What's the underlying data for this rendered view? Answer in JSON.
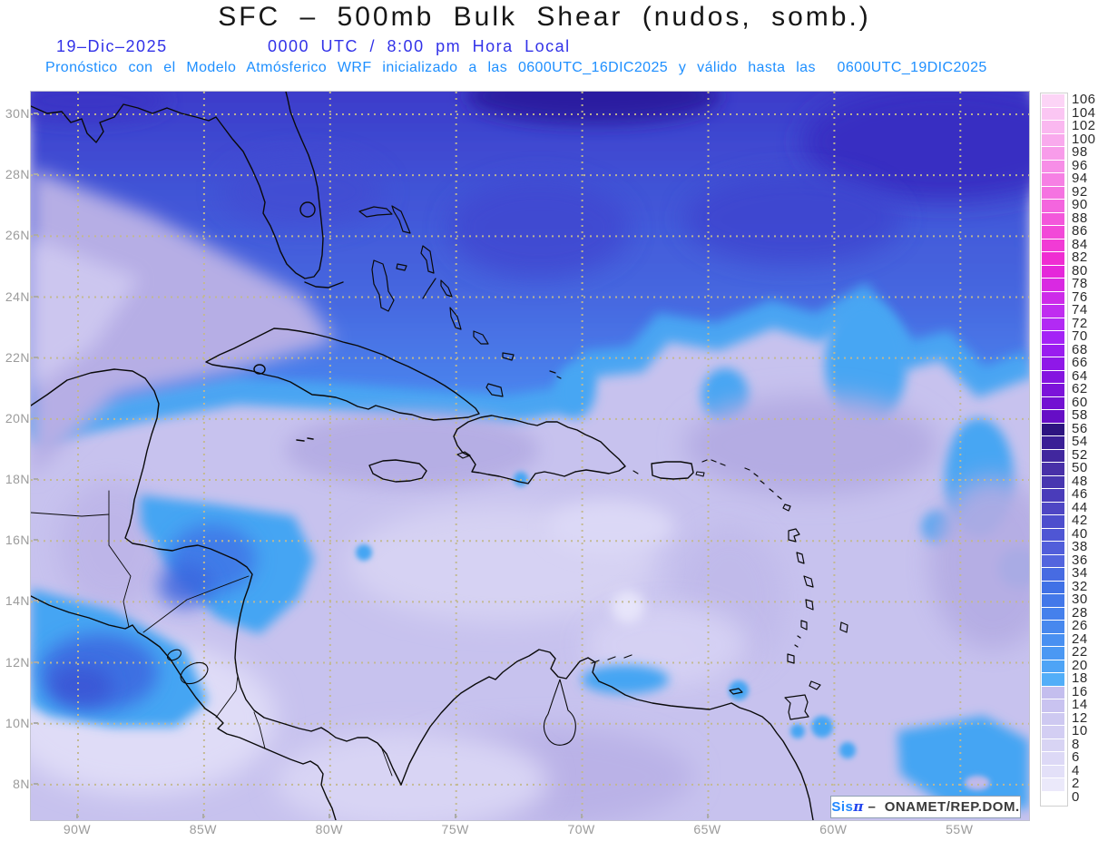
{
  "title": "SFC – 500mb Bulk Shear (nudos, somb.)",
  "subtitle": {
    "date": "19–Dic–2025",
    "time": "0000 UTC / 8:00 pm Hora Local",
    "forecast": "Pronóstico con el Modelo Atmósferico WRF inicializado a las 0600UTC_16DIC2025 y válido hasta las  0600UTC_19DIC2025"
  },
  "attribution": {
    "logo_sis": "Sis",
    "logo_pi": "π",
    "text": " –  ONAMET/REP.DOM."
  },
  "axes": {
    "lat_labels": [
      "30N",
      "28N",
      "26N",
      "24N",
      "22N",
      "20N",
      "18N",
      "16N",
      "14N",
      "12N",
      "10N",
      "8N"
    ],
    "lon_labels": [
      "90W",
      "85W",
      "80W",
      "75W",
      "70W",
      "65W",
      "60W",
      "55W"
    ]
  },
  "colorbar": {
    "unit": "nudos",
    "values": [
      106,
      104,
      102,
      100,
      98,
      96,
      94,
      92,
      90,
      88,
      86,
      84,
      82,
      80,
      78,
      76,
      74,
      72,
      70,
      68,
      66,
      64,
      62,
      60,
      58,
      56,
      54,
      52,
      50,
      48,
      46,
      44,
      42,
      40,
      38,
      36,
      34,
      32,
      30,
      28,
      26,
      24,
      22,
      20,
      18,
      16,
      14,
      12,
      10,
      8,
      6,
      4,
      2,
      0
    ],
    "colors": [
      "#fcd4f6",
      "#fbc6f3",
      "#fab8f0",
      "#f9aaed",
      "#f89cea",
      "#f78ee7",
      "#f680e4",
      "#f573e1",
      "#f465de",
      "#f357db",
      "#f249d8",
      "#f13bd5",
      "#ef2dd2",
      "#e527da",
      "#d929e2",
      "#cd2be9",
      "#c02df0",
      "#b22af4",
      "#a423f6",
      "#9a1def",
      "#8f18e8",
      "#8515e0",
      "#7c13d9",
      "#7311d2",
      "#660ec6",
      "#2d1480",
      "#3a1f96",
      "#41279e",
      "#4830a8",
      "#4836b0",
      "#4a3cba",
      "#4e46c4",
      "#4d4ecd",
      "#4f56d4",
      "#515eda",
      "#5365de",
      "#476be2",
      "#4071e6",
      "#4378e9",
      "#4580ec",
      "#4788ee",
      "#4990f1",
      "#4b98f3",
      "#4ea4f6",
      "#52aef8",
      "#c4beee",
      "#c9c3f0",
      "#cec9f1",
      "#d3cef3",
      "#d8d4f4",
      "#ddd9f6",
      "#e3e0f8",
      "#ebe9fa",
      "#ffffff"
    ]
  },
  "map_colors": {
    "base_lavender": "#c7c2ee",
    "bright_cyan_band": "#47a6f3",
    "dark_indigo_top": "#2a1da0",
    "grid_dots": "#c3b98e",
    "coastline": "#0a0a0a"
  }
}
